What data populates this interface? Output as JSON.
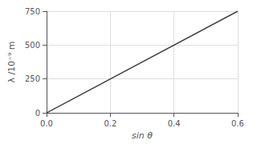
{
  "chart_data": {
    "type": "line",
    "xlabel": "sin θ",
    "ylabel": "λ /10⁻⁹ m",
    "x": [
      0,
      0.6
    ],
    "values": [
      0,
      750
    ],
    "color": "#444444",
    "xlim": [
      0,
      0.6
    ],
    "ylim": [
      0,
      750
    ],
    "xticks": [
      {
        "value": 0,
        "label": "0.0"
      },
      0.2,
      0.4,
      0.6
    ],
    "yticks": [
      0,
      250,
      500,
      750
    ],
    "grid": true
  }
}
